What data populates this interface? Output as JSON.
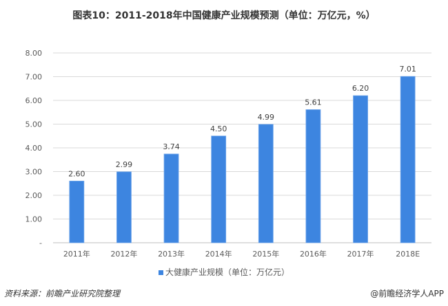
{
  "title": "图表10：2011-2018年中国健康产业规模预测（单位：万亿元，%）",
  "chart_data": {
    "type": "bar",
    "categories": [
      "2011年",
      "2012年",
      "2013年",
      "2014年",
      "2015年",
      "2016年",
      "2017年",
      "2018E"
    ],
    "series": [
      {
        "name": "大健康产业规模（单位：万亿元）",
        "values": [
          2.6,
          2.99,
          3.74,
          4.5,
          4.99,
          5.61,
          6.2,
          7.01
        ]
      }
    ],
    "ylim": [
      0,
      8
    ],
    "yticks": [
      "-",
      "1.00",
      "2.00",
      "3.00",
      "4.00",
      "5.00",
      "6.00",
      "7.00",
      "8.00"
    ],
    "grid": true,
    "legend": "bottom",
    "bar_color": "#3d85e0"
  },
  "legend_label": "大健康产业规模（单位：万亿元）",
  "footer": {
    "source": "资料来源：前瞻产业研究院整理",
    "credit": "@前瞻经济学人APP"
  }
}
